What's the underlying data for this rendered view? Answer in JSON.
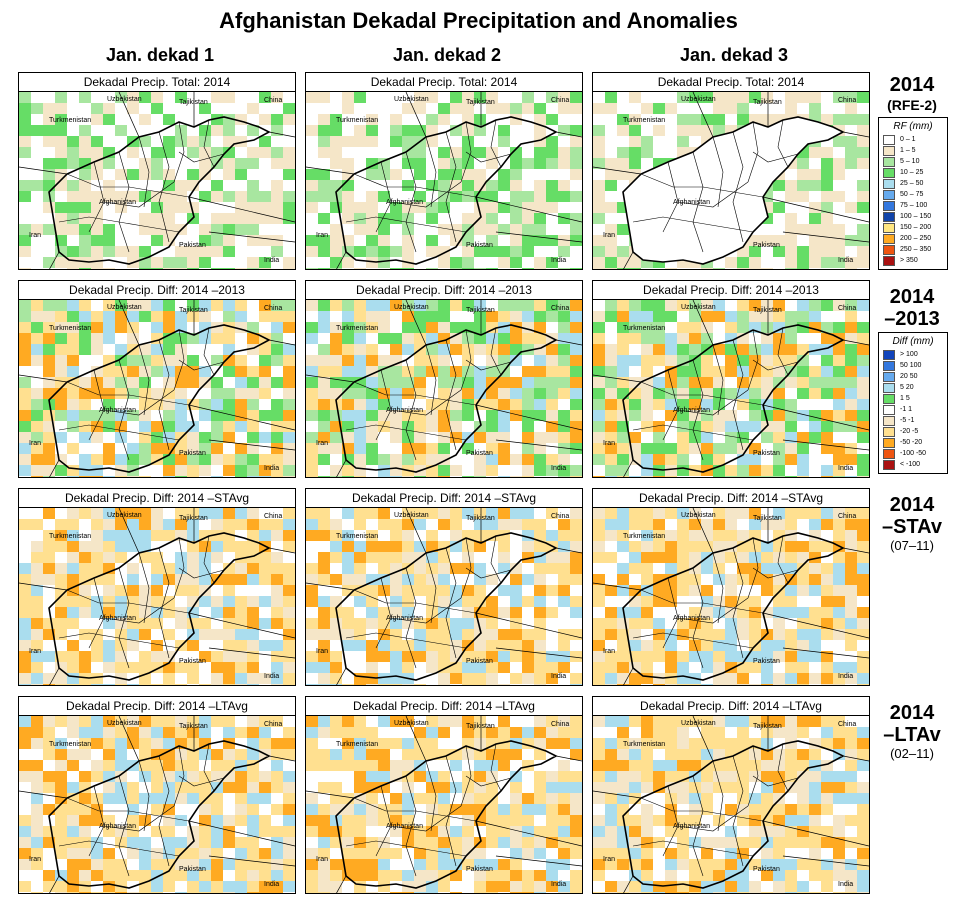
{
  "title": "Afghanistan Dekadal Precipitation and Anomalies",
  "columns": [
    "Jan. dekad 1",
    "Jan. dekad 2",
    "Jan. dekad 3"
  ],
  "rows": [
    {
      "panel_title": "Dekadal Precip. Total: 2014",
      "label1": "2014",
      "label2": "(RFE-2)",
      "label3": ""
    },
    {
      "panel_title": "Dekadal Precip. Diff:  2014 –2013",
      "label1": "2014",
      "label2": "–2013",
      "label3": ""
    },
    {
      "panel_title": "Dekadal Precip. Diff:  2014 –STAvg",
      "label1": "2014",
      "label2": "–STAv",
      "label3": "(07–11)"
    },
    {
      "panel_title": "Dekadal Precip. Diff:  2014 –LTAvg",
      "label1": "2014",
      "label2": "–LTAv",
      "label3": "(02–11)"
    }
  ],
  "map_labels": {
    "uzbekistan": "Uzbekistan",
    "tajikistan": "Tajikistan",
    "china": "China",
    "turkmenistan": "Turkmenistan",
    "afghanistan": "Afghanistan",
    "iran": "Iran",
    "pakistan": "Pakistan",
    "india": "India"
  },
  "legend_rf": {
    "title": "RF (mm)",
    "items": [
      {
        "label": "0 – 1",
        "color": "#ffffff"
      },
      {
        "label": "1 – 5",
        "color": "#f5e6c8"
      },
      {
        "label": "5 – 10",
        "color": "#a8e6a0"
      },
      {
        "label": "10 – 25",
        "color": "#66dd66"
      },
      {
        "label": "25 – 50",
        "color": "#aaddee"
      },
      {
        "label": "50 – 75",
        "color": "#66aaee"
      },
      {
        "label": "75 – 100",
        "color": "#3377dd"
      },
      {
        "label": "100 – 150",
        "color": "#1144aa"
      },
      {
        "label": "150 – 200",
        "color": "#ffe680"
      },
      {
        "label": "200 – 250",
        "color": "#ffaa22"
      },
      {
        "label": "250 – 350",
        "color": "#ee5511"
      },
      {
        "label": "> 350",
        "color": "#aa1111"
      }
    ]
  },
  "legend_diff": {
    "title": "Diff (mm)",
    "items": [
      {
        "label": "> 100",
        "color": "#1144bb"
      },
      {
        "label": "50  100",
        "color": "#3377dd"
      },
      {
        "label": "20  50",
        "color": "#66aaee"
      },
      {
        "label": "5  20",
        "color": "#aaddee"
      },
      {
        "label": "1  5",
        "color": "#66dd66"
      },
      {
        "label": "-1  1",
        "color": "#ffffff"
      },
      {
        "label": "-5  -1",
        "color": "#f5e6c8"
      },
      {
        "label": "-20  -5",
        "color": "#ffe090"
      },
      {
        "label": "-50  -20",
        "color": "#ffaa22"
      },
      {
        "label": "-100  -50",
        "color": "#ee5511"
      },
      {
        "label": "< -100",
        "color": "#aa1111"
      }
    ]
  }
}
